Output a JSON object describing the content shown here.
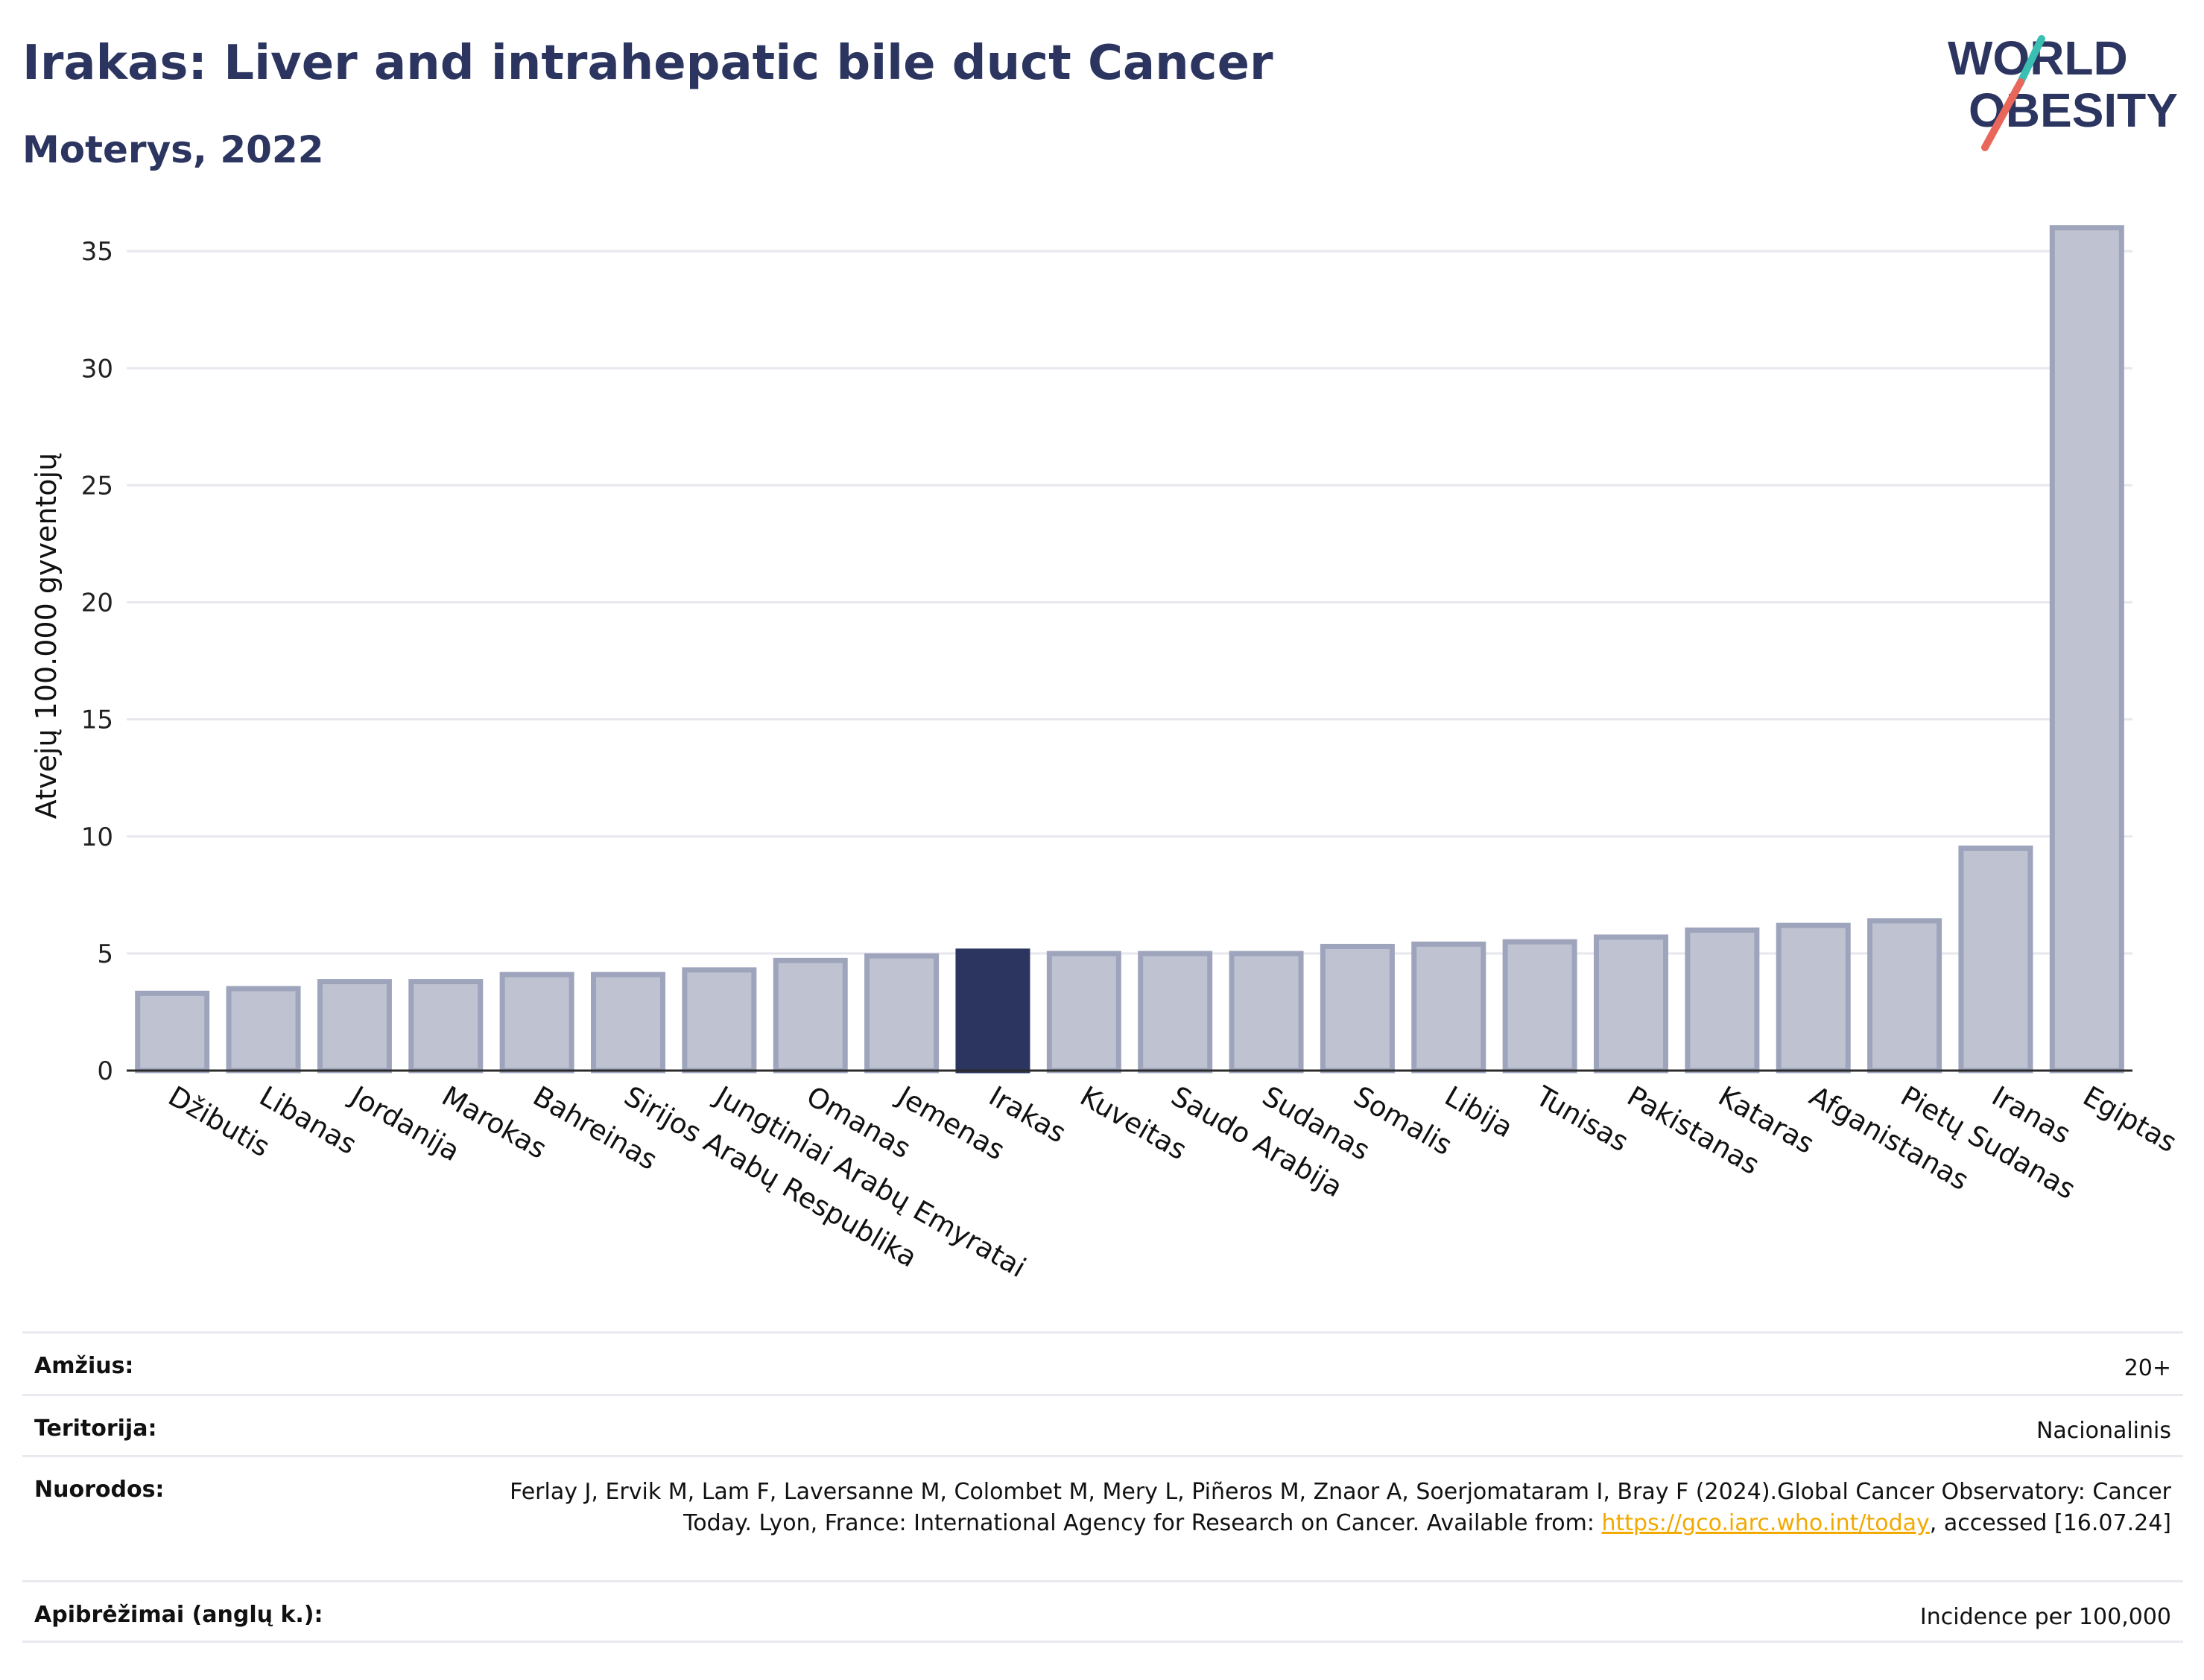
{
  "header": {
    "title": "Irakas: Liver and intrahepatic bile duct Cancer",
    "subtitle": "Moterys, 2022"
  },
  "logo": {
    "line1": "WORLD",
    "line2": "OBESITY",
    "colors": {
      "text": "#2b3560",
      "slash_teal": "#3bbfb3",
      "slash_red": "#e8675a"
    }
  },
  "chart_data": {
    "type": "bar",
    "ylabel": "Atvejų 100.000 gyventojų",
    "xlabel": "",
    "ylim": [
      0,
      36.5
    ],
    "yticks": [
      0,
      5,
      10,
      15,
      20,
      25,
      30,
      35
    ],
    "grid": true,
    "highlight": "Irakas",
    "colors": {
      "bar": "#bfc3d1",
      "bar_edge": "#9ea4bc",
      "highlight": "#2b3560",
      "grid": "#e6e8ee",
      "axis": "#2b2b2b"
    },
    "categories": [
      "Džibutis",
      "Libanas",
      "Jordanija",
      "Marokas",
      "Bahreinas",
      "Sirijos Arabų Respublika",
      "Jungtiniai Arabų Emyratai",
      "Omanas",
      "Jemenas",
      "Irakas",
      "Kuveitas",
      "Saudo Arabija",
      "Sudanas",
      "Somalis",
      "Libija",
      "Tunisas",
      "Pakistanas",
      "Kataras",
      "Afganistanas",
      "Pietų Sudanas",
      "Iranas",
      "Egiptas"
    ],
    "values": [
      3.3,
      3.5,
      3.8,
      3.8,
      4.1,
      4.1,
      4.3,
      4.7,
      4.9,
      5.1,
      5.0,
      5.0,
      5.0,
      5.3,
      5.4,
      5.5,
      5.7,
      6.0,
      6.2,
      6.4,
      9.5,
      36.0
    ]
  },
  "info": {
    "age_label": "Amžius:",
    "age_value": "20+",
    "territory_label": "Teritorija:",
    "territory_value": "Nacionalinis",
    "refs_label": "Nuorodos:",
    "refs_text1": "Ferlay J, Ervik M, Lam F, Laversanne M, Colombet M, Mery L, Piñeros M, Znaor A, Soerjomataram I, Bray F (2024).Global Cancer Observatory: Cancer Today. Lyon, France: International Agency for Research on Cancer. Available from: ",
    "refs_link": "https://gco.iarc.who.int/today",
    "refs_text2": ", accessed [16.07.24]",
    "defs_label": "Apibrėžimai (anglų k.):",
    "defs_value": "Incidence per 100,000"
  }
}
